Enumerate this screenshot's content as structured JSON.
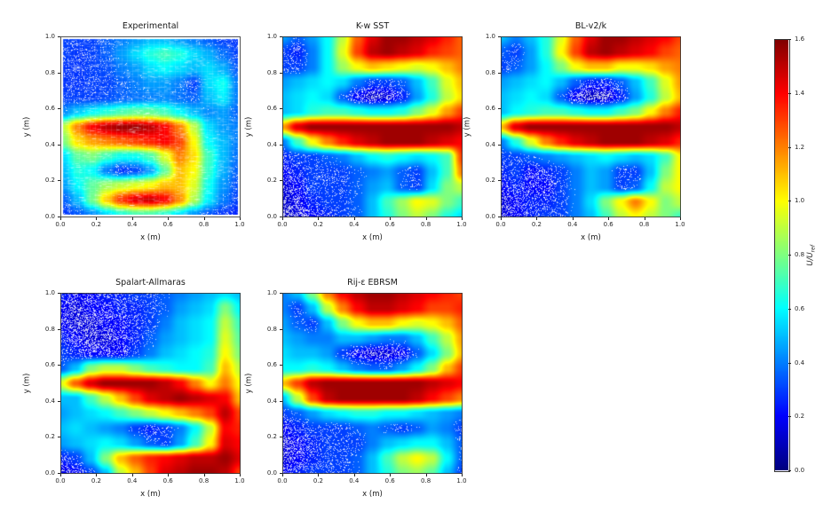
{
  "chart_data": {
    "type": "heatmap",
    "colormap": "jet",
    "vmin": 0.0,
    "vmax": 1.6,
    "axes": {
      "xlabel": "x (m)",
      "ylabel": "y (m)",
      "x_range": [
        0.0,
        1.0
      ],
      "y_range": [
        0.0,
        1.0
      ],
      "xticks": [
        "0.0",
        "0.2",
        "0.4",
        "0.6",
        "0.8",
        "1.0"
      ],
      "yticks": [
        "0.0",
        "0.2",
        "0.4",
        "0.6",
        "0.8",
        "1.0"
      ]
    },
    "colorbar": {
      "label_main": "U/U",
      "label_sub": "ref",
      "ticks": [
        "0.0",
        "0.2",
        "0.4",
        "0.6",
        "0.8",
        "1.0",
        "1.2",
        "1.4",
        "1.6"
      ]
    },
    "grid_note": "values = approximate U/Uref sampled on a uniform 13x13 grid; rows ordered from y=1.0 (top) down to y=0.0 (bottom), columns x=0.0 to x=1.0",
    "plots": [
      {
        "title": "Experimental",
        "values": [
          [
            0.3,
            0.3,
            0.3,
            0.35,
            0.4,
            0.45,
            0.5,
            0.5,
            0.45,
            0.4,
            0.35,
            0.3,
            0.28
          ],
          [
            0.3,
            0.28,
            0.3,
            0.35,
            0.45,
            0.55,
            0.65,
            0.7,
            0.65,
            0.55,
            0.48,
            0.38,
            0.3
          ],
          [
            0.28,
            0.28,
            0.3,
            0.32,
            0.4,
            0.45,
            0.55,
            0.6,
            0.55,
            0.5,
            0.55,
            0.48,
            0.34
          ],
          [
            0.28,
            0.28,
            0.3,
            0.3,
            0.35,
            0.4,
            0.45,
            0.45,
            0.4,
            0.3,
            0.55,
            0.62,
            0.4
          ],
          [
            0.3,
            0.3,
            0.3,
            0.32,
            0.35,
            0.38,
            0.4,
            0.42,
            0.38,
            0.35,
            0.5,
            0.58,
            0.4
          ],
          [
            0.42,
            0.52,
            0.6,
            0.66,
            0.72,
            0.76,
            0.76,
            0.7,
            0.6,
            0.5,
            0.42,
            0.45,
            0.36
          ],
          [
            0.9,
            1.2,
            1.4,
            1.5,
            1.55,
            1.55,
            1.5,
            1.4,
            1.2,
            0.9,
            0.55,
            0.45,
            0.4
          ],
          [
            0.8,
            1.05,
            1.15,
            1.2,
            1.25,
            1.3,
            1.35,
            1.4,
            1.3,
            1.0,
            0.6,
            0.5,
            0.4
          ],
          [
            0.55,
            0.75,
            0.8,
            0.7,
            0.62,
            0.62,
            0.72,
            0.95,
            1.2,
            1.05,
            0.7,
            0.5,
            0.38
          ],
          [
            0.5,
            0.65,
            0.6,
            0.4,
            0.28,
            0.32,
            0.45,
            0.75,
            1.1,
            1.0,
            0.68,
            0.48,
            0.35
          ],
          [
            0.45,
            0.6,
            0.75,
            0.85,
            0.9,
            0.95,
            1.0,
            1.1,
            1.1,
            0.95,
            0.62,
            0.44,
            0.32
          ],
          [
            0.35,
            0.5,
            0.78,
            1.08,
            1.32,
            1.45,
            1.48,
            1.4,
            1.18,
            0.88,
            0.58,
            0.4,
            0.3
          ],
          [
            0.28,
            0.34,
            0.42,
            0.55,
            0.65,
            0.72,
            0.72,
            0.66,
            0.56,
            0.44,
            0.34,
            0.28,
            0.25
          ]
        ]
      },
      {
        "title": "K-w SST",
        "values": [
          [
            0.45,
            0.35,
            0.45,
            0.6,
            0.9,
            1.25,
            1.45,
            1.55,
            1.55,
            1.5,
            1.45,
            1.35,
            1.25
          ],
          [
            0.3,
            0.25,
            0.4,
            0.6,
            0.95,
            1.3,
            1.5,
            1.55,
            1.5,
            1.45,
            1.35,
            1.3,
            1.25
          ],
          [
            0.3,
            0.3,
            0.4,
            0.6,
            0.85,
            1.0,
            1.1,
            1.05,
            1.0,
            0.95,
            1.0,
            1.1,
            1.2
          ],
          [
            0.45,
            0.5,
            0.55,
            0.6,
            0.55,
            0.4,
            0.3,
            0.3,
            0.35,
            0.5,
            0.7,
            0.95,
            1.1
          ],
          [
            0.5,
            0.55,
            0.6,
            0.55,
            0.35,
            0.2,
            0.12,
            0.15,
            0.25,
            0.45,
            0.65,
            0.9,
            1.05
          ],
          [
            0.5,
            0.55,
            0.65,
            0.7,
            0.7,
            0.65,
            0.6,
            0.6,
            0.65,
            0.8,
            0.95,
            1.15,
            1.3
          ],
          [
            1.15,
            1.45,
            1.55,
            1.55,
            1.55,
            1.55,
            1.55,
            1.55,
            1.55,
            1.55,
            1.55,
            1.55,
            1.5
          ],
          [
            0.4,
            0.7,
            1.0,
            1.2,
            1.35,
            1.45,
            1.5,
            1.55,
            1.55,
            1.55,
            1.5,
            1.45,
            1.4
          ],
          [
            0.25,
            0.3,
            0.3,
            0.35,
            0.4,
            0.5,
            0.6,
            0.65,
            0.6,
            0.55,
            0.6,
            0.7,
            1.3
          ],
          [
            0.2,
            0.25,
            0.3,
            0.3,
            0.3,
            0.35,
            0.4,
            0.45,
            0.35,
            0.3,
            0.5,
            0.7,
            1.2
          ],
          [
            0.15,
            0.2,
            0.3,
            0.3,
            0.3,
            0.35,
            0.45,
            0.5,
            0.35,
            0.3,
            0.55,
            0.8,
            0.9
          ],
          [
            0.12,
            0.18,
            0.25,
            0.3,
            0.3,
            0.35,
            0.5,
            0.7,
            0.85,
            1.0,
            0.95,
            0.8,
            0.7
          ],
          [
            0.1,
            0.15,
            0.2,
            0.25,
            0.3,
            0.35,
            0.5,
            0.65,
            0.8,
            0.9,
            0.8,
            0.65,
            0.55
          ]
        ]
      },
      {
        "title": "BL-v2/k",
        "values": [
          [
            0.5,
            0.4,
            0.5,
            0.65,
            0.95,
            1.25,
            1.45,
            1.55,
            1.55,
            1.5,
            1.45,
            1.4,
            1.3
          ],
          [
            0.35,
            0.3,
            0.45,
            0.65,
            1.0,
            1.3,
            1.5,
            1.55,
            1.5,
            1.45,
            1.4,
            1.3,
            1.25
          ],
          [
            0.3,
            0.35,
            0.45,
            0.6,
            0.8,
            1.0,
            1.1,
            1.1,
            1.0,
            1.0,
            1.05,
            1.15,
            1.2
          ],
          [
            0.45,
            0.5,
            0.55,
            0.6,
            0.5,
            0.35,
            0.25,
            0.25,
            0.35,
            0.5,
            0.7,
            0.95,
            1.15
          ],
          [
            0.5,
            0.55,
            0.6,
            0.55,
            0.35,
            0.18,
            0.1,
            0.12,
            0.25,
            0.45,
            0.65,
            0.9,
            1.1
          ],
          [
            0.5,
            0.6,
            0.65,
            0.7,
            0.7,
            0.65,
            0.6,
            0.6,
            0.7,
            0.8,
            1.0,
            1.2,
            1.35
          ],
          [
            1.1,
            1.45,
            1.55,
            1.55,
            1.55,
            1.55,
            1.55,
            1.55,
            1.55,
            1.55,
            1.55,
            1.55,
            1.5
          ],
          [
            0.4,
            0.65,
            0.95,
            1.2,
            1.35,
            1.45,
            1.5,
            1.55,
            1.55,
            1.55,
            1.5,
            1.45,
            1.35
          ],
          [
            0.3,
            0.3,
            0.35,
            0.4,
            0.45,
            0.5,
            0.55,
            0.6,
            0.55,
            0.5,
            0.55,
            0.7,
            1.0
          ],
          [
            0.25,
            0.3,
            0.2,
            0.25,
            0.3,
            0.4,
            0.5,
            0.45,
            0.3,
            0.3,
            0.5,
            0.8,
            1.0
          ],
          [
            0.2,
            0.25,
            0.2,
            0.2,
            0.3,
            0.4,
            0.5,
            0.45,
            0.3,
            0.35,
            0.6,
            0.9,
            1.0
          ],
          [
            0.15,
            0.2,
            0.25,
            0.25,
            0.3,
            0.4,
            0.55,
            0.8,
            1.0,
            1.2,
            1.0,
            0.8,
            0.9
          ],
          [
            0.15,
            0.2,
            0.25,
            0.3,
            0.3,
            0.4,
            0.5,
            0.7,
            0.9,
            1.0,
            0.9,
            0.8,
            0.7
          ]
        ]
      },
      {
        "title": "Spalart-Allmaras",
        "values": [
          [
            0.25,
            0.2,
            0.2,
            0.25,
            0.25,
            0.3,
            0.3,
            0.35,
            0.4,
            0.45,
            0.5,
            0.55,
            0.5
          ],
          [
            0.2,
            0.15,
            0.2,
            0.2,
            0.25,
            0.25,
            0.3,
            0.35,
            0.45,
            0.5,
            0.55,
            0.8,
            0.6
          ],
          [
            0.2,
            0.15,
            0.15,
            0.2,
            0.2,
            0.25,
            0.3,
            0.4,
            0.5,
            0.55,
            0.6,
            0.9,
            0.7
          ],
          [
            0.25,
            0.2,
            0.15,
            0.15,
            0.2,
            0.25,
            0.35,
            0.45,
            0.5,
            0.55,
            0.6,
            0.95,
            0.75
          ],
          [
            0.3,
            0.25,
            0.2,
            0.2,
            0.2,
            0.3,
            0.4,
            0.5,
            0.55,
            0.6,
            0.65,
            1.0,
            0.8
          ],
          [
            0.35,
            0.5,
            0.8,
            0.9,
            0.9,
            0.8,
            0.7,
            0.65,
            0.6,
            0.6,
            0.7,
            1.1,
            0.9
          ],
          [
            0.95,
            1.25,
            1.45,
            1.55,
            1.55,
            1.55,
            1.55,
            1.5,
            1.4,
            1.2,
            1.0,
            1.2,
            1.0
          ],
          [
            0.5,
            0.5,
            0.7,
            0.9,
            1.1,
            1.3,
            1.45,
            1.5,
            1.55,
            1.5,
            1.45,
            1.4,
            1.1
          ],
          [
            0.45,
            0.5,
            0.55,
            0.6,
            0.7,
            0.8,
            0.9,
            1.0,
            1.1,
            1.2,
            1.3,
            1.5,
            1.3
          ],
          [
            0.5,
            0.55,
            0.5,
            0.45,
            0.4,
            0.3,
            0.25,
            0.3,
            0.4,
            0.6,
            0.9,
            1.4,
            1.35
          ],
          [
            0.45,
            0.5,
            0.55,
            0.6,
            0.55,
            0.45,
            0.35,
            0.3,
            0.45,
            0.7,
            1.0,
            1.45,
            1.4
          ],
          [
            0.25,
            0.3,
            0.5,
            0.8,
            1.1,
            1.25,
            1.35,
            1.4,
            1.45,
            1.5,
            1.5,
            1.55,
            1.45
          ],
          [
            0.15,
            0.2,
            0.3,
            0.5,
            0.9,
            1.1,
            1.3,
            1.45,
            1.5,
            1.55,
            1.55,
            1.5,
            1.3
          ]
        ]
      },
      {
        "title": "Rij-ε EBRSM",
        "values": [
          [
            0.4,
            0.5,
            0.8,
            1.2,
            1.4,
            1.5,
            1.55,
            1.55,
            1.5,
            1.45,
            1.4,
            1.35,
            1.3
          ],
          [
            0.4,
            0.3,
            0.5,
            0.9,
            1.2,
            1.4,
            1.5,
            1.5,
            1.45,
            1.4,
            1.3,
            1.3,
            1.35
          ],
          [
            0.45,
            0.35,
            0.3,
            0.5,
            0.8,
            1.0,
            1.1,
            1.1,
            1.0,
            0.95,
            1.0,
            1.1,
            1.25
          ],
          [
            0.5,
            0.45,
            0.4,
            0.4,
            0.5,
            0.5,
            0.45,
            0.4,
            0.4,
            0.5,
            0.7,
            0.9,
            1.15
          ],
          [
            0.55,
            0.5,
            0.5,
            0.45,
            0.3,
            0.2,
            0.15,
            0.15,
            0.2,
            0.35,
            0.55,
            0.8,
            1.1
          ],
          [
            0.6,
            0.6,
            0.65,
            0.6,
            0.5,
            0.4,
            0.35,
            0.35,
            0.45,
            0.6,
            0.8,
            1.1,
            1.3
          ],
          [
            1.1,
            1.3,
            1.5,
            1.55,
            1.55,
            1.55,
            1.55,
            1.55,
            1.55,
            1.55,
            1.5,
            1.45,
            1.4
          ],
          [
            0.5,
            0.9,
            1.3,
            1.5,
            1.55,
            1.55,
            1.55,
            1.55,
            1.55,
            1.5,
            1.4,
            1.3,
            1.2
          ],
          [
            0.3,
            0.35,
            0.45,
            0.55,
            0.6,
            0.65,
            0.65,
            0.6,
            0.6,
            0.55,
            0.5,
            0.45,
            0.4
          ],
          [
            0.2,
            0.25,
            0.3,
            0.3,
            0.3,
            0.35,
            0.4,
            0.35,
            0.3,
            0.35,
            0.45,
            0.4,
            0.3
          ],
          [
            0.15,
            0.2,
            0.25,
            0.3,
            0.3,
            0.3,
            0.4,
            0.5,
            0.55,
            0.6,
            0.6,
            0.5,
            0.35
          ],
          [
            0.15,
            0.2,
            0.25,
            0.3,
            0.3,
            0.35,
            0.5,
            0.7,
            0.9,
            1.0,
            0.9,
            0.6,
            0.35
          ],
          [
            0.2,
            0.25,
            0.3,
            0.3,
            0.3,
            0.35,
            0.5,
            0.65,
            0.8,
            0.85,
            0.75,
            0.5,
            0.3
          ]
        ]
      }
    ]
  }
}
